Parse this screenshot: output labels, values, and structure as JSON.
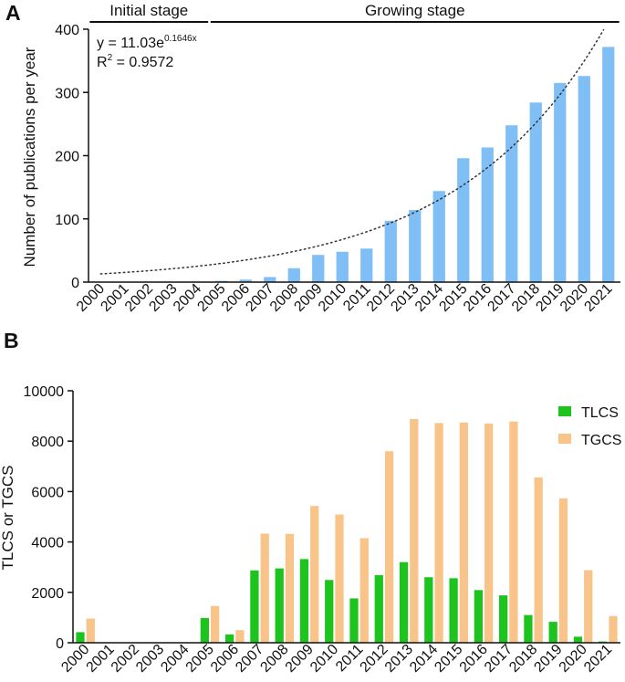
{
  "chart_data": [
    {
      "id": "A",
      "panel_label": "A",
      "type": "bar",
      "ylabel": "Number of publications per year",
      "ylim": [
        0,
        400
      ],
      "yticks": [
        "0",
        "100",
        "200",
        "300",
        "400"
      ],
      "categories": [
        "2000",
        "2001",
        "2002",
        "2003",
        "2004",
        "2005",
        "2006",
        "2007",
        "2008",
        "2009",
        "2010",
        "2011",
        "2012",
        "2013",
        "2014",
        "2015",
        "2016",
        "2017",
        "2018",
        "2019",
        "2020",
        "2021"
      ],
      "values": [
        0,
        0,
        0,
        0,
        0,
        2,
        4,
        8,
        22,
        43,
        48,
        53,
        97,
        114,
        144,
        196,
        213,
        248,
        284,
        315,
        326,
        372
      ],
      "bar_color": "#7fbff5",
      "stages": [
        {
          "label": "Initial stage",
          "from": "2000",
          "to": "2004"
        },
        {
          "label": "Growing stage",
          "from": "2005",
          "to": "2021"
        }
      ],
      "fit": {
        "a": 11.03,
        "b": 0.1646,
        "eq_prefix": "y = 11.03e",
        "eq_exponent": "0.1646x",
        "r2_prefix": "R",
        "r2_sup": "2",
        "r2_suffix": " = 0.9572"
      }
    },
    {
      "id": "B",
      "panel_label": "B",
      "type": "bar",
      "ylabel": "TLCS or TGCS",
      "ylim": [
        0,
        10000
      ],
      "yticks": [
        "0",
        "2000",
        "4000",
        "6000",
        "8000",
        "10000"
      ],
      "categories": [
        "2000",
        "2001",
        "2002",
        "2003",
        "2004",
        "2005",
        "2006",
        "2007",
        "2008",
        "2009",
        "2010",
        "2011",
        "2012",
        "2013",
        "2014",
        "2015",
        "2016",
        "2017",
        "2018",
        "2019",
        "2020",
        "2021"
      ],
      "series": [
        {
          "name": "TLCS",
          "color": "#1dc41d",
          "values": [
            420,
            0,
            0,
            0,
            0,
            980,
            330,
            2870,
            2950,
            3320,
            2490,
            1760,
            2680,
            3200,
            2600,
            2560,
            2090,
            1880,
            1100,
            830,
            240,
            50
          ]
        },
        {
          "name": "TGCS",
          "color": "#f8c48a",
          "values": [
            960,
            0,
            0,
            0,
            0,
            1460,
            500,
            4330,
            4320,
            5430,
            5090,
            4150,
            7600,
            8880,
            8720,
            8740,
            8700,
            8780,
            6560,
            5730,
            2880,
            1060
          ]
        }
      ],
      "legend_position": "top-right"
    }
  ]
}
